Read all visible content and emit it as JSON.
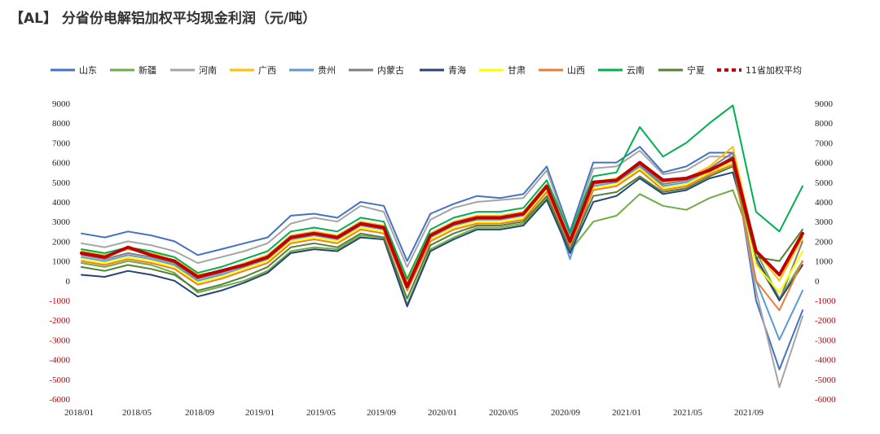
{
  "title": "【AL】 分省份电解铝加权平均现金利润（元/吨）",
  "chart_data": {
    "type": "line",
    "title": "",
    "xlabel": "",
    "ylabel": "",
    "x_ticks": [
      "2018/01",
      "2018/05",
      "2018/09",
      "2019/01",
      "2019/05",
      "2019/09",
      "2020/01",
      "2020/05",
      "2020/09",
      "2021/01",
      "2021/05",
      "2021/09"
    ],
    "y_ticks_left": [
      9000,
      8000,
      7000,
      6000,
      5000,
      4000,
      3000,
      2000,
      1000,
      0,
      -1000,
      -2000,
      -3000,
      -4000,
      -5000,
      -6000
    ],
    "y_ticks_right": [
      9000,
      8000,
      7000,
      6000,
      5000,
      4000,
      3000,
      2000,
      1000,
      0,
      -1000,
      -2000,
      -3000,
      -4000,
      -5000,
      -6000
    ],
    "ylim": [
      -6000,
      9000
    ],
    "x": [
      "2018/01",
      "2018/03",
      "2018/05",
      "2018/07",
      "2018/09",
      "2018/11",
      "2019/01",
      "2019/03",
      "2019/05",
      "2019/07",
      "2019/09",
      "2019/11",
      "2020/01",
      "2020/02",
      "2020/03",
      "2020/04",
      "2020/05",
      "2020/07",
      "2020/09",
      "2020/11",
      "2021/01",
      "2021/02",
      "2021/03",
      "2021/04",
      "2021/05",
      "2021/06",
      "2021/07",
      "2021/08",
      "2021/09",
      "2021/10",
      "2021/11",
      "2021/12"
    ],
    "legend_position": "top",
    "series": [
      {
        "name": "山东",
        "color": "#4472C4",
        "dash": false,
        "values": [
          2400,
          2200,
          2500,
          2300,
          2000,
          1300,
          1600,
          1900,
          2200,
          3300,
          3400,
          3200,
          4000,
          3800,
          1000,
          3400,
          3900,
          4300,
          4200,
          4400,
          5800,
          2500,
          6000,
          6000,
          6800,
          5500,
          5800,
          6500,
          6500,
          -1000,
          -4500,
          -1500
        ]
      },
      {
        "name": "新疆",
        "color": "#70AD47",
        "dash": false,
        "values": [
          900,
          700,
          1000,
          800,
          400,
          -600,
          -300,
          0,
          500,
          1500,
          1700,
          1600,
          2300,
          2200,
          -1200,
          1600,
          2200,
          2700,
          2700,
          2900,
          4200,
          1500,
          3000,
          3300,
          4400,
          3800,
          3600,
          4200,
          4600,
          1500,
          -900,
          1000
        ]
      },
      {
        "name": "河南",
        "color": "#A5A5A5",
        "dash": false,
        "values": [
          1900,
          1700,
          2000,
          1800,
          1500,
          900,
          1200,
          1500,
          1900,
          2900,
          3200,
          3000,
          3800,
          3500,
          700,
          3100,
          3700,
          4000,
          4100,
          4200,
          5600,
          2300,
          5700,
          5800,
          6600,
          5400,
          5600,
          6300,
          6300,
          -500,
          -5400,
          -1800
        ]
      },
      {
        "name": "广西",
        "color": "#FFC000",
        "dash": false,
        "values": [
          1500,
          1300,
          1600,
          1400,
          1200,
          300,
          500,
          900,
          1300,
          2300,
          2500,
          2300,
          3000,
          2800,
          0,
          2400,
          3000,
          3300,
          3300,
          3500,
          4900,
          2000,
          5000,
          5200,
          6000,
          5000,
          5200,
          5800,
          6800,
          1500,
          0,
          2200
        ]
      },
      {
        "name": "贵州",
        "color": "#5B9BD5",
        "dash": false,
        "values": [
          1200,
          1000,
          1300,
          1100,
          800,
          0,
          300,
          700,
          1100,
          2100,
          2300,
          2100,
          2800,
          2600,
          -300,
          2200,
          2800,
          3100,
          3100,
          3300,
          4700,
          1100,
          4800,
          5000,
          5800,
          4800,
          5000,
          5600,
          6300,
          0,
          -3000,
          -500
        ]
      },
      {
        "name": "内蒙古",
        "color": "#7F7F7F",
        "dash": false,
        "values": [
          1300,
          1100,
          1400,
          1200,
          900,
          100,
          400,
          800,
          1200,
          2200,
          2400,
          2200,
          2900,
          2700,
          -200,
          2300,
          2900,
          3200,
          3200,
          3400,
          4800,
          2100,
          4900,
          5100,
          5900,
          4900,
          5100,
          5700,
          6500,
          1000,
          -1000,
          2000
        ]
      },
      {
        "name": "青海",
        "color": "#264478",
        "dash": false,
        "values": [
          300,
          200,
          500,
          300,
          0,
          -800,
          -500,
          -100,
          400,
          1400,
          1600,
          1500,
          2200,
          2100,
          -1300,
          1500,
          2100,
          2600,
          2600,
          2800,
          4100,
          1400,
          4000,
          4300,
          5200,
          4400,
          4600,
          5200,
          5500,
          1200,
          -1000,
          800
        ]
      },
      {
        "name": "甘肃",
        "color": "#FFFF00",
        "dash": false,
        "values": [
          1100,
          900,
          1200,
          1000,
          700,
          -100,
          200,
          600,
          1000,
          2000,
          2200,
          2000,
          2700,
          2500,
          -400,
          2100,
          2700,
          3000,
          3000,
          3200,
          4600,
          1900,
          4700,
          4900,
          5700,
          4700,
          4900,
          5500,
          6000,
          800,
          -600,
          1500
        ]
      },
      {
        "name": "山西",
        "color": "#ED7D31",
        "dash": false,
        "values": [
          1000,
          800,
          1100,
          900,
          600,
          -200,
          100,
          500,
          900,
          1900,
          2100,
          1900,
          2600,
          2400,
          -500,
          2000,
          2600,
          2900,
          2900,
          3100,
          4500,
          1800,
          4600,
          4800,
          5600,
          4600,
          4800,
          5400,
          5900,
          0,
          -1500,
          1000
        ]
      },
      {
        "name": "云南",
        "color": "#00B050",
        "dash": false,
        "values": [
          1600,
          1400,
          1700,
          1500,
          1200,
          400,
          700,
          1100,
          1500,
          2500,
          2700,
          2500,
          3200,
          3000,
          100,
          2600,
          3200,
          3500,
          3500,
          3700,
          5100,
          2400,
          5300,
          5500,
          7800,
          6300,
          7000,
          8000,
          8900,
          3500,
          2500,
          4800
        ]
      },
      {
        "name": "宁夏",
        "color": "#548235",
        "dash": false,
        "values": [
          700,
          500,
          800,
          600,
          300,
          -500,
          -200,
          200,
          700,
          1700,
          1900,
          1700,
          2400,
          2200,
          -900,
          1800,
          2400,
          2800,
          2800,
          3000,
          4300,
          1600,
          4300,
          4500,
          5300,
          4500,
          4700,
          5300,
          5800,
          1200,
          1000,
          2600
        ]
      },
      {
        "name": "11省加权平均",
        "color": "#C00000",
        "dash": true,
        "values": [
          1400,
          1200,
          1700,
          1300,
          1000,
          200,
          500,
          800,
          1200,
          2200,
          2400,
          2200,
          2900,
          2700,
          -300,
          2300,
          2900,
          3200,
          3200,
          3400,
          4800,
          2000,
          5000,
          5100,
          6000,
          5100,
          5200,
          5600,
          6200,
          1500,
          300,
          2400
        ]
      }
    ]
  }
}
